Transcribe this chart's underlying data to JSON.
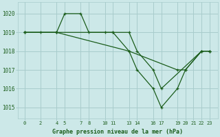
{
  "bg_color": "#cce8e8",
  "grid_color": "#a8cccc",
  "line_color": "#1a5c1a",
  "title": "Graphe pression niveau de la mer (hPa)",
  "ylabel_ticks": [
    1015,
    1016,
    1017,
    1018,
    1019,
    1020
  ],
  "ylim": [
    1014.4,
    1020.6
  ],
  "xlim": [
    -0.8,
    24.0
  ],
  "line1_x": [
    0,
    2,
    4,
    5,
    7,
    8,
    10,
    11,
    13,
    14,
    16,
    17,
    22,
    23
  ],
  "line1_y": [
    1019,
    1019,
    1019,
    1020,
    1020,
    1019,
    1019,
    1019,
    1019,
    1018,
    1017,
    1016,
    1018,
    1018
  ],
  "line2_x": [
    0,
    4,
    11,
    13,
    14,
    16,
    17,
    19,
    20,
    22,
    23
  ],
  "line2_y": [
    1019,
    1019,
    1019,
    1018,
    1017,
    1016,
    1015,
    1016,
    1017,
    1018,
    1018
  ],
  "line3_x": [
    0,
    4,
    13,
    19,
    20,
    22,
    23
  ],
  "line3_y": [
    1019,
    1019,
    1018,
    1017,
    1017,
    1018,
    1018
  ],
  "xtick_positions": [
    0,
    2,
    4,
    5,
    7,
    8,
    10,
    11,
    13,
    14,
    16,
    17,
    19,
    20,
    21,
    22,
    23
  ],
  "xtick_labels": [
    "0",
    "2",
    "4",
    "5",
    "7",
    "8",
    "10",
    "11",
    "13",
    "14",
    "16",
    "17",
    "19",
    "20",
    "21",
    "22",
    "23"
  ]
}
